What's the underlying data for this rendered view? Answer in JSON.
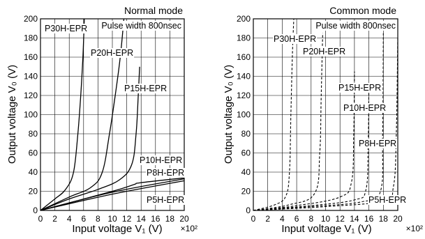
{
  "chart_data": [
    {
      "type": "line",
      "title": "Normal mode",
      "annotation": "Pulse width 800nsec",
      "xlabel": "Input voltage V₁ (V)",
      "ylabel": "Output voltage V₀ (V)",
      "x_multiplier_label": "×10²",
      "xlim": [
        0,
        20
      ],
      "ylim": [
        0,
        200
      ],
      "x_ticks": [
        "0",
        "2",
        "4",
        "6",
        "8",
        "10",
        "12",
        "14",
        "16",
        "18",
        "20"
      ],
      "y_ticks": [
        "0",
        "20",
        "40",
        "60",
        "80",
        "100",
        "120",
        "140",
        "160",
        "180",
        "200"
      ],
      "grid": true,
      "line_style": "solid",
      "series": [
        {
          "name": "P30H-EPR",
          "points": [
            [
              0,
              0
            ],
            [
              2,
              12
            ],
            [
              3.5,
              22
            ],
            [
              4.6,
              40
            ],
            [
              5.2,
              80
            ],
            [
              5.6,
              120
            ],
            [
              5.9,
              160
            ],
            [
              6.1,
              200
            ]
          ]
        },
        {
          "name": "P20H-EPR",
          "points": [
            [
              0,
              0
            ],
            [
              4,
              14
            ],
            [
              7,
              24
            ],
            [
              8.6,
              40
            ],
            [
              9.6,
              80
            ],
            [
              10.4,
              120
            ],
            [
              11.1,
              160
            ],
            [
              11.6,
              200
            ]
          ]
        },
        {
          "name": "P15H-EPR",
          "points": [
            [
              0,
              0
            ],
            [
              4,
              12
            ],
            [
              8,
              22
            ],
            [
              11,
              32
            ],
            [
              12.7,
              48
            ],
            [
              13.3,
              80
            ],
            [
              13.6,
              120
            ],
            [
              13.8,
              150
            ]
          ]
        },
        {
          "name": "P10H-EPR",
          "points": [
            [
              0,
              0
            ],
            [
              10,
              20
            ],
            [
              13,
              27
            ],
            [
              14,
              29
            ],
            [
              20,
              34
            ]
          ]
        },
        {
          "name": "P8H-EPR",
          "points": [
            [
              0,
              0
            ],
            [
              10,
              19
            ],
            [
              20,
              33
            ]
          ]
        },
        {
          "name": "P5H-EPR",
          "points": [
            [
              0,
              0
            ],
            [
              10,
              17
            ],
            [
              20,
              31
            ]
          ]
        }
      ]
    },
    {
      "type": "line",
      "title": "Common mode",
      "annotation": "Pulse width 800nsec",
      "xlabel": "Input voltage V₁ (V)",
      "ylabel": "Output voltage V₀ (V)",
      "x_multiplier_label": "×10²",
      "xlim": [
        0,
        20
      ],
      "ylim": [
        0,
        200
      ],
      "x_ticks": [
        "0",
        "2",
        "4",
        "6",
        "8",
        "10",
        "12",
        "14",
        "16",
        "18",
        "20"
      ],
      "y_ticks": [
        "0",
        "20",
        "40",
        "60",
        "80",
        "100",
        "120",
        "140",
        "160",
        "180",
        "200"
      ],
      "grid": true,
      "line_style": "dashed",
      "series": [
        {
          "name": "P30H-EPR",
          "points": [
            [
              0,
              0
            ],
            [
              3,
              6
            ],
            [
              4.5,
              15
            ],
            [
              5,
              40
            ],
            [
              5.2,
              100
            ],
            [
              5.4,
              160
            ],
            [
              5.6,
              200
            ]
          ]
        },
        {
          "name": "P20H-EPR",
          "points": [
            [
              0,
              0
            ],
            [
              5,
              6
            ],
            [
              8.5,
              18
            ],
            [
              9.2,
              60
            ],
            [
              9.4,
              120
            ],
            [
              9.6,
              185
            ]
          ]
        },
        {
          "name": "P15H-EPR",
          "points": [
            [
              0,
              0
            ],
            [
              6,
              5
            ],
            [
              12,
              14
            ],
            [
              13.6,
              30
            ],
            [
              13.9,
              80
            ],
            [
              14,
              145
            ]
          ]
        },
        {
          "name": "P10H-EPR",
          "points": [
            [
              0,
              0
            ],
            [
              8,
              5
            ],
            [
              14,
              11
            ],
            [
              15.6,
              22
            ],
            [
              15.9,
              70
            ],
            [
              16,
              130
            ]
          ]
        },
        {
          "name": "P8H-EPR",
          "points": [
            [
              0,
              0
            ],
            [
              8,
              4
            ],
            [
              15,
              9
            ],
            [
              17.6,
              20
            ],
            [
              17.9,
              80
            ],
            [
              18,
              185
            ]
          ]
        },
        {
          "name": "P5H-EPR",
          "points": [
            [
              0,
              0
            ],
            [
              10,
              4
            ],
            [
              18,
              10
            ],
            [
              19.4,
              25
            ],
            [
              19.8,
              80
            ],
            [
              20,
              180
            ]
          ]
        }
      ]
    }
  ]
}
